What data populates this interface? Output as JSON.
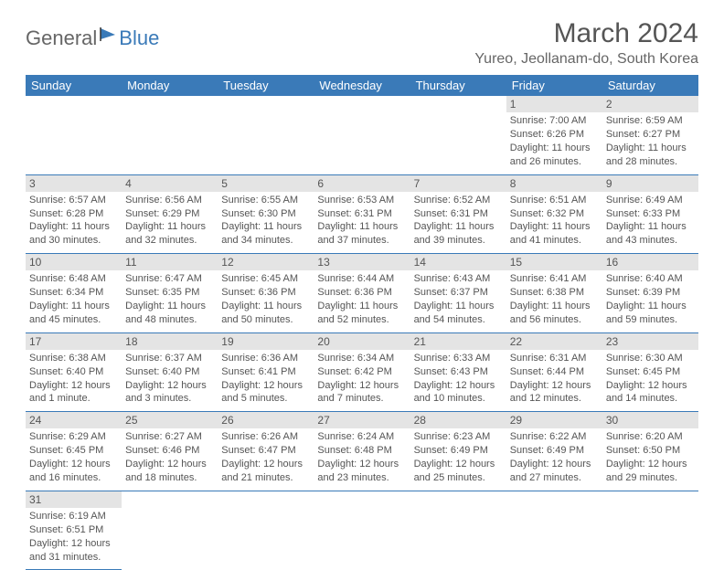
{
  "logo": {
    "general": "General",
    "blue": "Blue"
  },
  "title": "March 2024",
  "location": "Yureo, Jeollanam-do, South Korea",
  "colors": {
    "header_bg": "#3a7ab8",
    "header_text": "#ffffff",
    "daynum_bg": "#e4e4e4",
    "text": "#555555",
    "border": "#3a7ab8",
    "background": "#ffffff"
  },
  "fonts": {
    "title_size": 30,
    "location_size": 16,
    "weekday_size": 13,
    "cell_size": 11,
    "daynum_size": 12
  },
  "weekdays": [
    "Sunday",
    "Monday",
    "Tuesday",
    "Wednesday",
    "Thursday",
    "Friday",
    "Saturday"
  ],
  "layout": {
    "columns": 7,
    "rows": 6,
    "first_day_column": 5
  },
  "days": [
    {
      "n": 1,
      "sunrise": "7:00 AM",
      "sunset": "6:26 PM",
      "daylight": "11 hours and 26 minutes."
    },
    {
      "n": 2,
      "sunrise": "6:59 AM",
      "sunset": "6:27 PM",
      "daylight": "11 hours and 28 minutes."
    },
    {
      "n": 3,
      "sunrise": "6:57 AM",
      "sunset": "6:28 PM",
      "daylight": "11 hours and 30 minutes."
    },
    {
      "n": 4,
      "sunrise": "6:56 AM",
      "sunset": "6:29 PM",
      "daylight": "11 hours and 32 minutes."
    },
    {
      "n": 5,
      "sunrise": "6:55 AM",
      "sunset": "6:30 PM",
      "daylight": "11 hours and 34 minutes."
    },
    {
      "n": 6,
      "sunrise": "6:53 AM",
      "sunset": "6:31 PM",
      "daylight": "11 hours and 37 minutes."
    },
    {
      "n": 7,
      "sunrise": "6:52 AM",
      "sunset": "6:31 PM",
      "daylight": "11 hours and 39 minutes."
    },
    {
      "n": 8,
      "sunrise": "6:51 AM",
      "sunset": "6:32 PM",
      "daylight": "11 hours and 41 minutes."
    },
    {
      "n": 9,
      "sunrise": "6:49 AM",
      "sunset": "6:33 PM",
      "daylight": "11 hours and 43 minutes."
    },
    {
      "n": 10,
      "sunrise": "6:48 AM",
      "sunset": "6:34 PM",
      "daylight": "11 hours and 45 minutes."
    },
    {
      "n": 11,
      "sunrise": "6:47 AM",
      "sunset": "6:35 PM",
      "daylight": "11 hours and 48 minutes."
    },
    {
      "n": 12,
      "sunrise": "6:45 AM",
      "sunset": "6:36 PM",
      "daylight": "11 hours and 50 minutes."
    },
    {
      "n": 13,
      "sunrise": "6:44 AM",
      "sunset": "6:36 PM",
      "daylight": "11 hours and 52 minutes."
    },
    {
      "n": 14,
      "sunrise": "6:43 AM",
      "sunset": "6:37 PM",
      "daylight": "11 hours and 54 minutes."
    },
    {
      "n": 15,
      "sunrise": "6:41 AM",
      "sunset": "6:38 PM",
      "daylight": "11 hours and 56 minutes."
    },
    {
      "n": 16,
      "sunrise": "6:40 AM",
      "sunset": "6:39 PM",
      "daylight": "11 hours and 59 minutes."
    },
    {
      "n": 17,
      "sunrise": "6:38 AM",
      "sunset": "6:40 PM",
      "daylight": "12 hours and 1 minute."
    },
    {
      "n": 18,
      "sunrise": "6:37 AM",
      "sunset": "6:40 PM",
      "daylight": "12 hours and 3 minutes."
    },
    {
      "n": 19,
      "sunrise": "6:36 AM",
      "sunset": "6:41 PM",
      "daylight": "12 hours and 5 minutes."
    },
    {
      "n": 20,
      "sunrise": "6:34 AM",
      "sunset": "6:42 PM",
      "daylight": "12 hours and 7 minutes."
    },
    {
      "n": 21,
      "sunrise": "6:33 AM",
      "sunset": "6:43 PM",
      "daylight": "12 hours and 10 minutes."
    },
    {
      "n": 22,
      "sunrise": "6:31 AM",
      "sunset": "6:44 PM",
      "daylight": "12 hours and 12 minutes."
    },
    {
      "n": 23,
      "sunrise": "6:30 AM",
      "sunset": "6:45 PM",
      "daylight": "12 hours and 14 minutes."
    },
    {
      "n": 24,
      "sunrise": "6:29 AM",
      "sunset": "6:45 PM",
      "daylight": "12 hours and 16 minutes."
    },
    {
      "n": 25,
      "sunrise": "6:27 AM",
      "sunset": "6:46 PM",
      "daylight": "12 hours and 18 minutes."
    },
    {
      "n": 26,
      "sunrise": "6:26 AM",
      "sunset": "6:47 PM",
      "daylight": "12 hours and 21 minutes."
    },
    {
      "n": 27,
      "sunrise": "6:24 AM",
      "sunset": "6:48 PM",
      "daylight": "12 hours and 23 minutes."
    },
    {
      "n": 28,
      "sunrise": "6:23 AM",
      "sunset": "6:49 PM",
      "daylight": "12 hours and 25 minutes."
    },
    {
      "n": 29,
      "sunrise": "6:22 AM",
      "sunset": "6:49 PM",
      "daylight": "12 hours and 27 minutes."
    },
    {
      "n": 30,
      "sunrise": "6:20 AM",
      "sunset": "6:50 PM",
      "daylight": "12 hours and 29 minutes."
    },
    {
      "n": 31,
      "sunrise": "6:19 AM",
      "sunset": "6:51 PM",
      "daylight": "12 hours and 31 minutes."
    }
  ],
  "labels": {
    "sunrise": "Sunrise:",
    "sunset": "Sunset:",
    "daylight": "Daylight:"
  }
}
